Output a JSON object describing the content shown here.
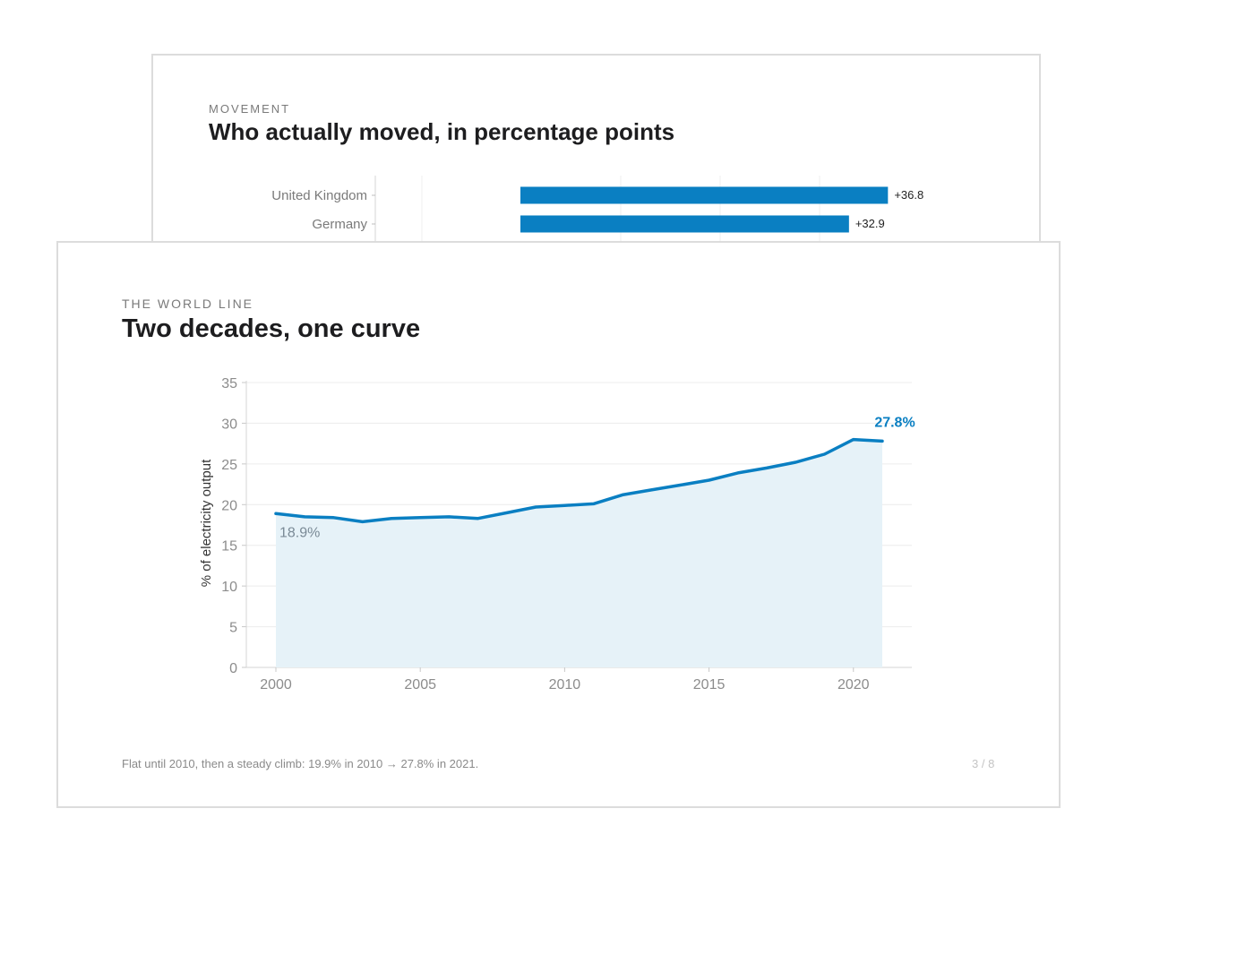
{
  "back_card": {
    "kicker": "MOVEMENT",
    "title": "Who actually moved, in percentage points",
    "chart_data": {
      "type": "bar",
      "orientation": "horizontal",
      "categories": [
        "United Kingdom",
        "Germany"
      ],
      "values": [
        36.8,
        32.9
      ],
      "data_labels": [
        "+36.8",
        "+32.9"
      ],
      "color": "#0a7fc2"
    }
  },
  "front_card": {
    "kicker": "THE WORLD LINE",
    "title": "Two decades, one curve",
    "footer_note": "Flat until 2010, then a steady climb: 19.9% in 2010 → 27.8% in 2021.",
    "page_indicator": "3 / 8",
    "chart_data": {
      "type": "area",
      "ylabel": "% of electricity output",
      "xlabel": "",
      "ylim": [
        0,
        35
      ],
      "xlim": [
        2000,
        2021
      ],
      "y_ticks": [
        0,
        5,
        10,
        15,
        20,
        25,
        30,
        35
      ],
      "x_ticks": [
        2000,
        2005,
        2010,
        2015,
        2020
      ],
      "grid": true,
      "color": "#0a7fc2",
      "fill_color": "#e6f2f8",
      "series": [
        {
          "x": [
            2000,
            2001,
            2002,
            2003,
            2004,
            2005,
            2006,
            2007,
            2008,
            2009,
            2010,
            2011,
            2012,
            2013,
            2014,
            2015,
            2016,
            2017,
            2018,
            2019,
            2020,
            2021
          ],
          "values": [
            18.9,
            18.5,
            18.4,
            17.9,
            18.3,
            18.4,
            18.5,
            18.3,
            19.0,
            19.7,
            19.9,
            20.1,
            21.2,
            21.8,
            22.4,
            23.0,
            23.9,
            24.5,
            25.2,
            26.2,
            28.0,
            27.8
          ]
        }
      ],
      "annotations": [
        {
          "text": "18.9%",
          "x": 2000,
          "y": 18.9,
          "color": "#7a8a96"
        },
        {
          "text": "27.8%",
          "x": 2021,
          "y": 27.8,
          "color": "#0a7fc2"
        }
      ]
    }
  }
}
